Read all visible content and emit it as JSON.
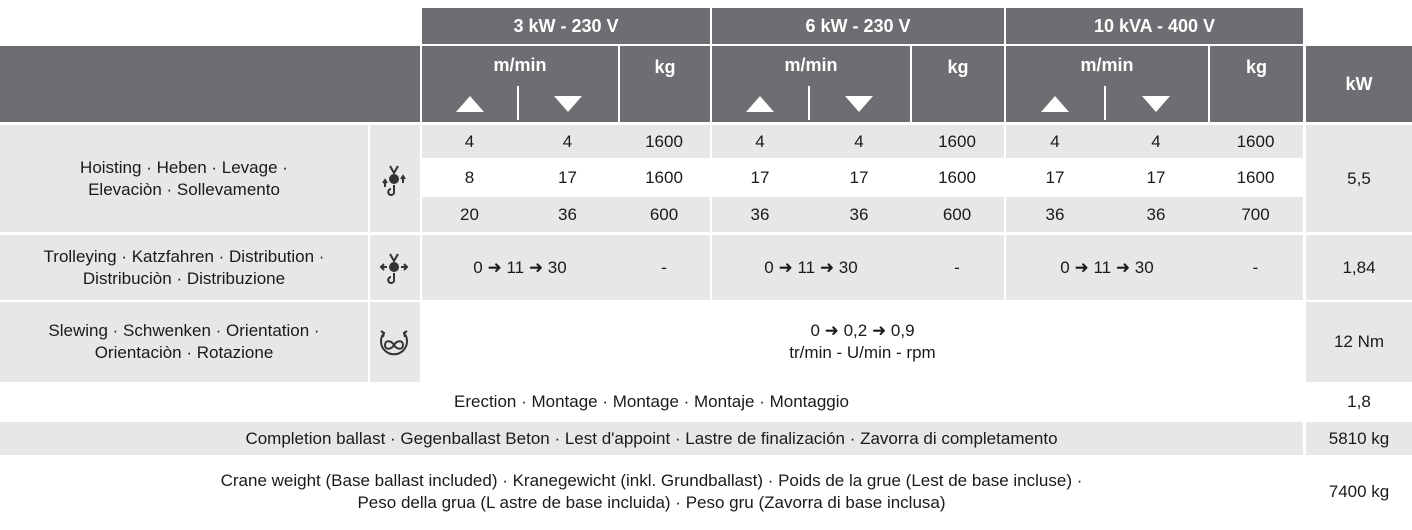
{
  "header": {
    "groups": [
      {
        "title": "3 kW - 230 V",
        "speed_unit": "m/min",
        "weight_unit": "kg"
      },
      {
        "title": "6 kW - 230 V",
        "speed_unit": "m/min",
        "weight_unit": "kg"
      },
      {
        "title": "10 kVA - 400 V",
        "speed_unit": "m/min",
        "weight_unit": "kg"
      }
    ],
    "power_unit": "kW"
  },
  "hoisting": {
    "label": [
      "Hoisting · Heben · Levage ·",
      "Elevaciòn · Sollevamento"
    ],
    "rows": [
      [
        4,
        4,
        1600,
        4,
        4,
        1600,
        4,
        4,
        1600
      ],
      [
        8,
        17,
        1600,
        17,
        17,
        1600,
        17,
        17,
        1600
      ],
      [
        20,
        36,
        600,
        36,
        36,
        600,
        36,
        36,
        700
      ]
    ],
    "power": "5,5"
  },
  "trolleying": {
    "label": [
      "Trolleying · Katzfahren · Distribution ·",
      "Distribuciòn · Distribuzione"
    ],
    "groups": [
      {
        "speed": "0 ➜ 11 ➜ 30",
        "weight": "-"
      },
      {
        "speed": "0 ➜ 11 ➜ 30",
        "weight": "-"
      },
      {
        "speed": "0 ➜ 11 ➜ 30",
        "weight": "-"
      }
    ],
    "power": "1,84"
  },
  "slewing": {
    "label": [
      "Slewing · Schwenken · Orientation ·",
      "Orientaciòn · Rotazione"
    ],
    "speed": "0 ➜ 0,2 ➜ 0,9",
    "unit": "tr/min - U/min - rpm",
    "power": "12 Nm"
  },
  "erection": {
    "label": "Erection · Montage · Montage · Montaje · Montaggio",
    "power": "1,8"
  },
  "completion_ballast": {
    "label": "Completion ballast · Gegenballast Beton · Lest d'appoint · Lastre de finalización · Zavorra di completamento",
    "weight": "5810 kg"
  },
  "crane_weight": {
    "label": [
      "Crane weight (Base ballast included) · Kranegewicht (inkl. Grundballast) · Poids de la grue (Lest de base incluse) ·",
      "Peso della grua (L astre de base incluida) · Peso gru (Zavorra di base inclusa)"
    ],
    "weight": "7400 kg"
  }
}
